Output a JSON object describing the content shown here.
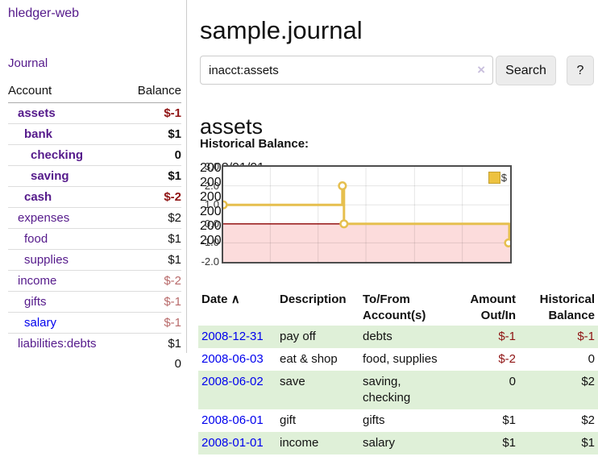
{
  "colors": {
    "link_visited_purple": "#551A8B",
    "link_blue": "#0000EE",
    "negative_red": "#8f1313",
    "negative_soft_red": "#b86a6a",
    "row_highlight_green": "#dff0d8",
    "chart_series_gold": "#EDC240",
    "chart_negative_region": "#fcdcdc",
    "chart_zero_line": "#8b0000"
  },
  "app": {
    "brand": "hledger-web",
    "nav": {
      "journal": "Journal"
    }
  },
  "sidebar": {
    "header": {
      "account": "Account",
      "balance": "Balance"
    },
    "accounts": [
      {
        "name": "assets",
        "depth": 1,
        "selected": true,
        "visited": true,
        "balance": "$-1",
        "balance_tone": "negative"
      },
      {
        "name": "bank",
        "depth": 2,
        "selected": true,
        "visited": true,
        "balance": "$1",
        "balance_tone": "normal"
      },
      {
        "name": "checking",
        "depth": 3,
        "selected": true,
        "visited": true,
        "balance": "0",
        "balance_tone": "normal"
      },
      {
        "name": "saving",
        "depth": 3,
        "selected": true,
        "visited": true,
        "balance": "$1",
        "balance_tone": "normal"
      },
      {
        "name": "cash",
        "depth": 2,
        "selected": true,
        "visited": true,
        "balance": "$-2",
        "balance_tone": "negative"
      },
      {
        "name": "expenses",
        "depth": 1,
        "selected": false,
        "visited": true,
        "balance": "$2",
        "balance_tone": "normal"
      },
      {
        "name": "food",
        "depth": 2,
        "selected": false,
        "visited": true,
        "balance": "$1",
        "balance_tone": "normal"
      },
      {
        "name": "supplies",
        "depth": 2,
        "selected": false,
        "visited": true,
        "balance": "$1",
        "balance_tone": "normal"
      },
      {
        "name": "income",
        "depth": 1,
        "selected": false,
        "visited": true,
        "balance": "$-2",
        "balance_tone": "negative-soft"
      },
      {
        "name": "gifts",
        "depth": 2,
        "selected": false,
        "visited": true,
        "balance": "$-1",
        "balance_tone": "negative-soft"
      },
      {
        "name": "salary",
        "depth": 2,
        "selected": false,
        "visited": false,
        "balance": "$-1",
        "balance_tone": "negative-soft"
      },
      {
        "name": "liabilities:debts",
        "depth": 1,
        "selected": false,
        "visited": true,
        "balance": "$1",
        "balance_tone": "normal"
      }
    ],
    "total": "0"
  },
  "main": {
    "title": "sample.journal",
    "search": {
      "value": "inacct:assets",
      "clear_glyph": "×",
      "button_label": "Search",
      "help_label": "?"
    },
    "account_heading": "assets",
    "section_label": "Historical Balance:"
  },
  "chart_data": {
    "type": "line",
    "title": "Historical Balance",
    "x_range": [
      "2008-01-01",
      "2009-01-01"
    ],
    "ylim": [
      -2,
      3
    ],
    "grid": true,
    "negative_region_highlight": true,
    "legend": {
      "position": "top-right",
      "label": "$"
    },
    "y_ticks": [
      {
        "value": 3,
        "label": "3.0"
      },
      {
        "value": 2,
        "label": "2.0"
      },
      {
        "value": 1,
        "label": "1.0"
      },
      {
        "value": 0,
        "label": "0.0"
      },
      {
        "value": -1,
        "label": "-1.0"
      },
      {
        "value": -2,
        "label": "-2.0"
      }
    ],
    "x_ticks": [
      {
        "date": "2008-01-01",
        "label": "2008/01/01"
      },
      {
        "date": "2008-03-01",
        "label": "2008/03/01"
      },
      {
        "date": "2008-05-01",
        "label": "2008/05/01"
      },
      {
        "date": "2008-07-01",
        "label": "2008/07/01"
      },
      {
        "date": "2008-09-01",
        "label": "2008/09/01"
      },
      {
        "date": "2008-11-01",
        "label": "2008/11/01"
      }
    ],
    "series": [
      {
        "name": "$",
        "steps": true,
        "points": [
          {
            "date": "2008-01-01",
            "value": 1
          },
          {
            "date": "2008-06-01",
            "value": 2
          },
          {
            "date": "2008-06-03",
            "value": 0
          },
          {
            "date": "2008-12-31",
            "value": -1
          }
        ]
      }
    ]
  },
  "register": {
    "headers": {
      "date": "Date",
      "description": "Description",
      "accounts": "To/From Account(s)",
      "amount": "Amount Out/In",
      "balance": "Historical Balance"
    },
    "sort_icon": "∧",
    "rows": [
      {
        "date": "2008-12-31",
        "description": "pay off",
        "accounts": "debts",
        "amount": "$-1",
        "amount_tone": "negative",
        "balance": "$-1",
        "balance_tone": "negative",
        "highlight": true
      },
      {
        "date": "2008-06-03",
        "description": "eat & shop",
        "accounts": "food, supplies",
        "amount": "$-2",
        "amount_tone": "negative",
        "balance": "0",
        "balance_tone": "normal",
        "highlight": false
      },
      {
        "date": "2008-06-02",
        "description": "save",
        "accounts": "saving, checking",
        "amount": "0",
        "amount_tone": "normal",
        "balance": "$2",
        "balance_tone": "normal",
        "highlight": true
      },
      {
        "date": "2008-06-01",
        "description": "gift",
        "accounts": "gifts",
        "amount": "$1",
        "amount_tone": "normal",
        "balance": "$2",
        "balance_tone": "normal",
        "highlight": false
      },
      {
        "date": "2008-01-01",
        "description": "income",
        "accounts": "salary",
        "amount": "$1",
        "amount_tone": "normal",
        "balance": "$1",
        "balance_tone": "normal",
        "highlight": true
      }
    ]
  }
}
